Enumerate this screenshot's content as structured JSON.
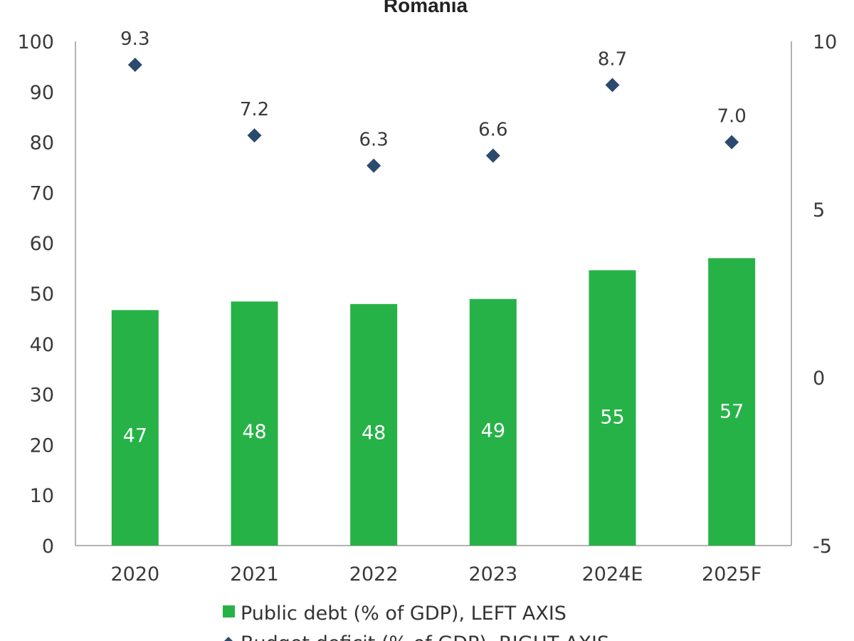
{
  "chart_data": {
    "title": "Romania",
    "type": "bar",
    "categories": [
      "2020",
      "2021",
      "2022",
      "2023",
      "2024E",
      "2025F"
    ],
    "series": [
      {
        "name": "Public debt (% of GDP), LEFT AXIS",
        "type": "bar",
        "axis": "left",
        "color": "#27b248",
        "values": [
          46.7,
          48.4,
          47.9,
          48.9,
          54.6,
          57.0
        ],
        "labels": [
          "47",
          "48",
          "48",
          "49",
          "55",
          "57"
        ]
      },
      {
        "name": "Budget deficit (% of GDP), RIGHT AXIS",
        "type": "scatter",
        "marker": "diamond",
        "axis": "right",
        "color": "#2c4a6e",
        "values": [
          9.3,
          7.2,
          6.3,
          6.6,
          8.7,
          7.0
        ],
        "labels": [
          "9.3",
          "7.2",
          "6.3",
          "6.6",
          "8.7",
          "7.0"
        ]
      }
    ],
    "y_left": {
      "lim": [
        0,
        100
      ],
      "ticks": [
        0,
        10,
        20,
        30,
        40,
        50,
        60,
        70,
        80,
        90,
        100
      ]
    },
    "y_right": {
      "lim": [
        -5,
        10
      ],
      "ticks": [
        -5,
        0,
        5,
        10
      ]
    },
    "grid": false,
    "legend_position": "bottom"
  }
}
